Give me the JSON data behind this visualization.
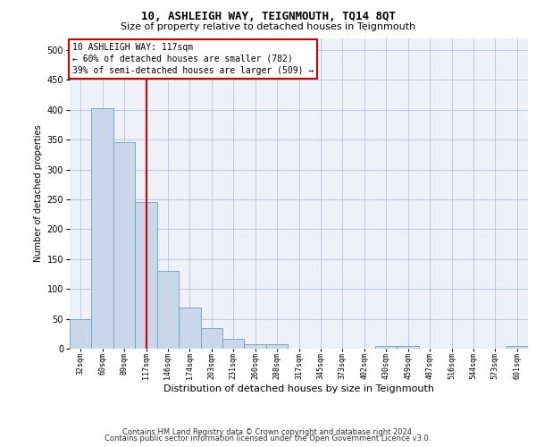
{
  "title1": "10, ASHLEIGH WAY, TEIGNMOUTH, TQ14 8QT",
  "title2": "Size of property relative to detached houses in Teignmouth",
  "xlabel": "Distribution of detached houses by size in Teignmouth",
  "ylabel": "Number of detached properties",
  "categories": [
    "32sqm",
    "60sqm",
    "89sqm",
    "117sqm",
    "146sqm",
    "174sqm",
    "203sqm",
    "231sqm",
    "260sqm",
    "288sqm",
    "317sqm",
    "345sqm",
    "373sqm",
    "402sqm",
    "430sqm",
    "459sqm",
    "487sqm",
    "516sqm",
    "544sqm",
    "573sqm",
    "601sqm"
  ],
  "values": [
    50,
    403,
    345,
    246,
    130,
    69,
    35,
    17,
    7,
    7,
    0,
    0,
    0,
    0,
    5,
    5,
    0,
    0,
    0,
    0,
    4
  ],
  "bar_color": "#c8d8e8",
  "bar_edge_color": "#6ea0c0",
  "vline_index": 3,
  "vline_color": "#cc0000",
  "annotation_line1": "10 ASHLEIGH WAY: 117sqm",
  "annotation_line2": "← 60% of detached houses are smaller (782)",
  "annotation_line3": "39% of semi-detached houses are larger (509) →",
  "annotation_box_color": "#ffffff",
  "annotation_box_edge": "#cc0000",
  "ylim": [
    0,
    520
  ],
  "yticks": [
    0,
    50,
    100,
    150,
    200,
    250,
    300,
    350,
    400,
    450,
    500
  ],
  "footer1": "Contains HM Land Registry data © Crown copyright and database right 2024.",
  "footer2": "Contains public sector information licensed under the Open Government Licence v3.0.",
  "grid_color": "#b0c4de",
  "bg_color": "#eef2f8",
  "title1_fontsize": 9,
  "title2_fontsize": 8,
  "tick_fontsize": 6,
  "ylabel_fontsize": 7,
  "xlabel_fontsize": 8,
  "ann_fontsize": 7,
  "footer_fontsize": 6
}
